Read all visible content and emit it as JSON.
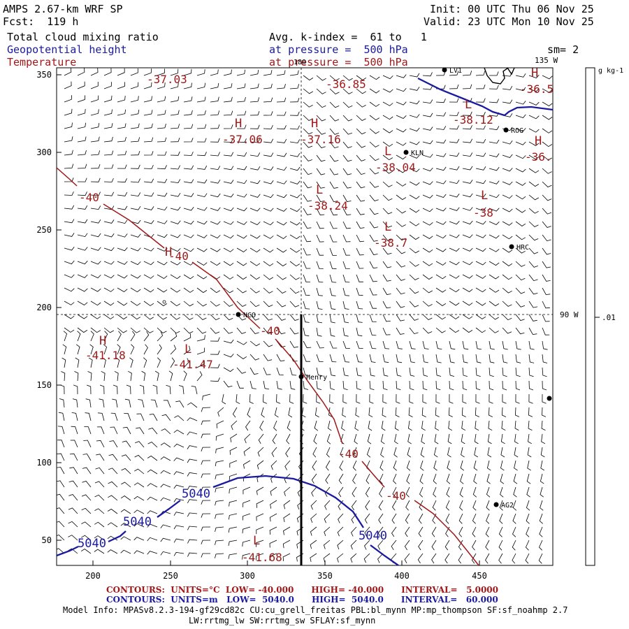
{
  "header": {
    "title": "AMPS 2.67-km WRF SP",
    "fcst": "Fcst:  119 h",
    "init": "Init: 00 UTC Thu 06 Nov 25",
    "valid": "Valid: 23 UTC Mon 10 Nov 25",
    "field1": "Total cloud mixing ratio",
    "field2": "Geopotential height",
    "field3": "Temperature",
    "avg": "Avg. k-index =  61 to   1",
    "pressure1": "at pressure =  500 hPa",
    "pressure2": "at pressure =  500 hPa",
    "sm": "sm= 2"
  },
  "colors": {
    "temperature": "#a01818",
    "height": "#1a1aa0",
    "text": "#000000"
  },
  "map": {
    "x_ticks": [
      "200",
      "250",
      "300",
      "350",
      "400",
      "450"
    ],
    "y_ticks": [
      "350",
      "300",
      "250",
      "200",
      "150",
      "100",
      "50"
    ],
    "lon_labels": {
      "top": "180",
      "right_top": "135 W",
      "right_mid": "90 W"
    },
    "colorbar": {
      "unit": "g kg-1",
      "tick": ".01"
    },
    "stations": [
      {
        "name": "NCO"
      },
      {
        "name": "Henry"
      },
      {
        "name": "KLN"
      },
      {
        "name": "ROG"
      },
      {
        "name": "HRC"
      },
      {
        "name": "AG2"
      },
      {
        "name": "LV1"
      },
      {
        "name": ""
      }
    ],
    "temperature_labels": [
      "-37.03",
      "-36.85",
      "-37.06",
      "-37.16",
      "-38.12",
      "-38.04",
      "-38.24",
      "-38.7",
      "-38",
      "-36.5",
      "-36.",
      "-41.18",
      "-41.47",
      "-41.68",
      "-40",
      "-40",
      "-40",
      "-40",
      "-40"
    ],
    "extrema_letters": [
      "H",
      "H",
      "H",
      "H",
      "H",
      "L",
      "L",
      "L",
      "L",
      "L",
      "H",
      "L",
      "L",
      "L",
      "L"
    ],
    "height_labels": [
      "5040",
      "5040",
      "5040",
      "5040"
    ]
  },
  "footer": {
    "contours_temp": "CONTOURS:  UNITS=°C  LOW= -40.000      HIGH= -40.000      INTERVAL=   5.0000",
    "contours_height": "CONTOURS:  UNITS=m   LOW=  5040.0      HIGH=  5040.0      INTERVAL=   60.000",
    "model_info": "Model Info: MPASv8.2.3-194-gf29cd82c CU:cu_grell_freitas PBL:bl_mynn MP:mp_thompson SF:sf_noahmp 2.7",
    "model_info2": "LW:rrtmg_lw SW:rrtmg_sw SFLAY:sf_mynn"
  }
}
